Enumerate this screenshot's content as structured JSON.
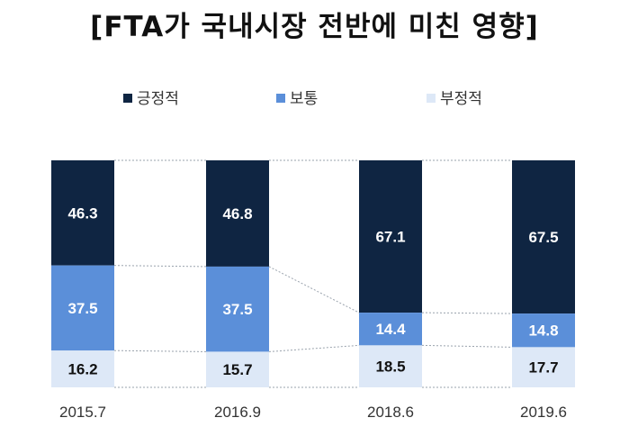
{
  "chart_data": {
    "type": "bar",
    "stacked": true,
    "percent": true,
    "title": "[FTA가 국내시장 전반에 미친 영향]",
    "categories": [
      "2015.7",
      "2016.9",
      "2018.6",
      "2019.6"
    ],
    "series": [
      {
        "name": "긍정적",
        "color": "#0f2542",
        "values": [
          46.3,
          46.8,
          67.1,
          67.5
        ]
      },
      {
        "name": "보통",
        "color": "#5b8fd9",
        "values": [
          37.5,
          37.5,
          14.4,
          14.8
        ]
      },
      {
        "name": "부정적",
        "color": "#dde8f7",
        "values": [
          16.2,
          15.7,
          18.5,
          17.7
        ]
      }
    ],
    "ylim": [
      0,
      100
    ],
    "legend_position": "top",
    "grid": false,
    "connector_lines": "dotted"
  }
}
